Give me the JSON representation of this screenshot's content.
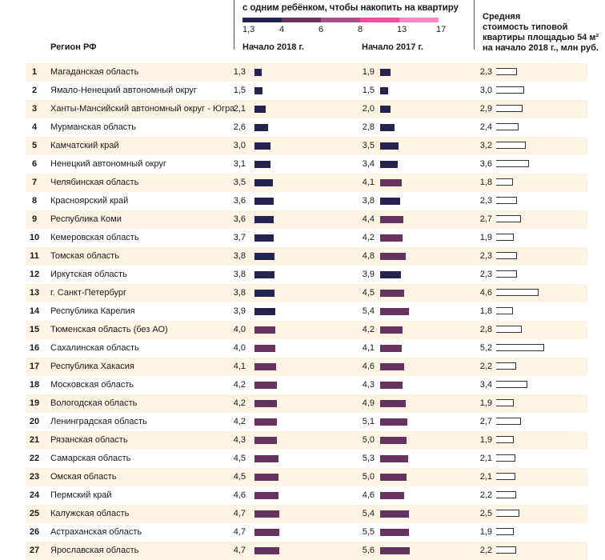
{
  "chart_data": {
    "type": "table",
    "legend": {
      "title": "с одним ребёнком, чтобы накопить на квартиру",
      "ticks": [
        "1,3",
        "4",
        "6",
        "8",
        "13",
        "17"
      ],
      "thresholds": [
        1.3,
        4,
        6,
        8,
        13,
        17
      ],
      "colors": [
        "#24224f",
        "#66335f",
        "#a95089",
        "#f04ca0",
        "#fa87c8"
      ]
    },
    "columns": {
      "region": "Регион РФ",
      "y2018": "Начало 2018 г.",
      "y2017": "Начало 2017 г.",
      "price": [
        "Средняя",
        "стоимость типовой",
        "квартиры площадью 54 м²",
        "на начало 2018 г., млн руб."
      ]
    },
    "rows": [
      {
        "rank": "1",
        "region": "Магаданская область",
        "y2018": "1,3",
        "y2017": "1,9",
        "price": "2,3"
      },
      {
        "rank": "2",
        "region": "Ямало-Ненецкий автономный округ",
        "y2018": "1,5",
        "y2017": "1,5",
        "price": "3,0"
      },
      {
        "rank": "3",
        "region": "Ханты-Мансийский автономный округ - Югра",
        "y2018": "2,1",
        "y2017": "2,0",
        "price": "2,9"
      },
      {
        "rank": "4",
        "region": "Мурманская область",
        "y2018": "2,6",
        "y2017": "2,8",
        "price": "2,4"
      },
      {
        "rank": "5",
        "region": "Камчатский край",
        "y2018": "3,0",
        "y2017": "3,5",
        "price": "3,2"
      },
      {
        "rank": "6",
        "region": "Ненецкий автономный округ",
        "y2018": "3,1",
        "y2017": "3,4",
        "price": "3,6"
      },
      {
        "rank": "7",
        "region": "Челябинская область",
        "y2018": "3,5",
        "y2017": "4,1",
        "price": "1,8"
      },
      {
        "rank": "8",
        "region": "Красноярский край",
        "y2018": "3,6",
        "y2017": "3,8",
        "price": "2,3"
      },
      {
        "rank": "9",
        "region": "Республика Коми",
        "y2018": "3,6",
        "y2017": "4,4",
        "price": "2,7"
      },
      {
        "rank": "10",
        "region": "Кемеровская область",
        "y2018": "3,7",
        "y2017": "4,2",
        "price": "1,9"
      },
      {
        "rank": "11",
        "region": "Томская область",
        "y2018": "3,8",
        "y2017": "4,8",
        "price": "2,3"
      },
      {
        "rank": "12",
        "region": "Иркутская область",
        "y2018": "3,8",
        "y2017": "3,9",
        "price": "2,3"
      },
      {
        "rank": "13",
        "region": "г. Санкт-Петербург",
        "y2018": "3,8",
        "y2017": "4,5",
        "price": "4,6"
      },
      {
        "rank": "14",
        "region": "Республика Карелия",
        "y2018": "3,9",
        "y2017": "5,4",
        "price": "1,8"
      },
      {
        "rank": "15",
        "region": "Тюменская область (без АО)",
        "y2018": "4,0",
        "y2017": "4,2",
        "price": "2,8"
      },
      {
        "rank": "16",
        "region": "Сахалинская область",
        "y2018": "4,0",
        "y2017": "4,1",
        "price": "5,2"
      },
      {
        "rank": "17",
        "region": "Республика Хакасия",
        "y2018": "4,1",
        "y2017": "4,6",
        "price": "2,2"
      },
      {
        "rank": "18",
        "region": "Московская область",
        "y2018": "4,2",
        "y2017": "4,3",
        "price": "3,4"
      },
      {
        "rank": "19",
        "region": "Вологодская область",
        "y2018": "4,2",
        "y2017": "4,9",
        "price": "1,9"
      },
      {
        "rank": "20",
        "region": "Ленинградская область",
        "y2018": "4,2",
        "y2017": "5,1",
        "price": "2,7"
      },
      {
        "rank": "21",
        "region": "Рязанская область",
        "y2018": "4,3",
        "y2017": "5,0",
        "price": "1,9"
      },
      {
        "rank": "22",
        "region": "Самарская область",
        "y2018": "4,5",
        "y2017": "5,3",
        "price": "2,1"
      },
      {
        "rank": "23",
        "region": "Омская область",
        "y2018": "4,5",
        "y2017": "5,0",
        "price": "2,1"
      },
      {
        "rank": "24",
        "region": "Пермский край",
        "y2018": "4,6",
        "y2017": "4,6",
        "price": "2,2"
      },
      {
        "rank": "25",
        "region": "Калужская область",
        "y2018": "4,7",
        "y2017": "5,4",
        "price": "2,5"
      },
      {
        "rank": "26",
        "region": "Астраханская область",
        "y2018": "4,7",
        "y2017": "5,5",
        "price": "1,9"
      },
      {
        "rank": "27",
        "region": "Ярославская область",
        "y2018": "4,7",
        "y2017": "5,6",
        "price": "2,2"
      }
    ]
  }
}
